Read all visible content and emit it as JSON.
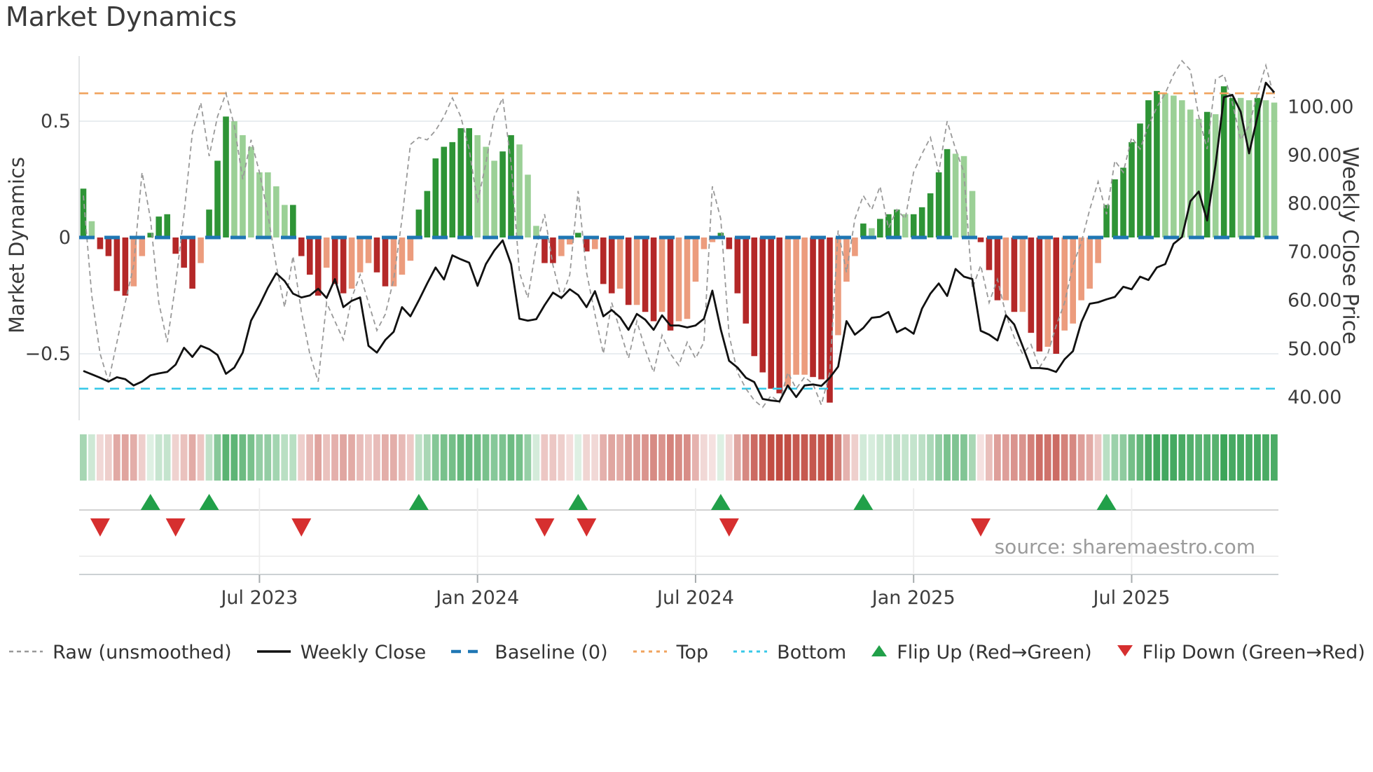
{
  "title": "Market Dynamics",
  "y_axis_left_label": "Market Dynamics",
  "y_axis_right_label": "Weekly Close Price",
  "source_note": "source: sharemaestro.com",
  "legend": [
    {
      "label": "Raw (unsmoothed)",
      "swatch": "raw"
    },
    {
      "label": "Weekly Close",
      "swatch": "close"
    },
    {
      "label": "Baseline (0)",
      "swatch": "baseline"
    },
    {
      "label": "Top",
      "swatch": "top"
    },
    {
      "label": "Bottom",
      "swatch": "bottom"
    },
    {
      "label": "Flip Up (Red→Green)",
      "swatch": "flip_up"
    },
    {
      "label": "Flip Down (Green→Red)",
      "swatch": "flip_down"
    }
  ],
  "colors": {
    "bar_dark_green": "#2e9436",
    "bar_light_green": "#9bd096",
    "bar_dark_red": "#b42828",
    "bar_light_red": "#ec9c7d",
    "baseline_blue": "#1f77b4",
    "top_orange": "#f0a35e",
    "bottom_cyan": "#38c9e8",
    "raw_gray": "#999999",
    "close_black": "#111111",
    "flip_up_green": "#21a049",
    "flip_down_red": "#d62f2f",
    "heat_green": "#3aa457",
    "heat_red": "#c14b41",
    "grid": "#e9edf0",
    "spine": "#d8dcde"
  },
  "chart_data": {
    "type": "bar+line",
    "title": "Market Dynamics",
    "ylabel_left": "Market Dynamics",
    "ylabel_right": "Weekly Close Price",
    "n_weeks": 143,
    "x_ticks": [
      {
        "label": "Jul 2023",
        "week": 22
      },
      {
        "label": "Jan 2024",
        "week": 48
      },
      {
        "label": "Jul 2024",
        "week": 74
      },
      {
        "label": "Jan 2025",
        "week": 100
      },
      {
        "label": "Jul 2025",
        "week": 126
      }
    ],
    "y_left_ticks": [
      {
        "label": "0.5",
        "value": 0.5
      },
      {
        "label": "0",
        "value": 0
      },
      {
        "label": "−0.5",
        "value": -0.5
      }
    ],
    "y_left_range": [
      -0.78,
      0.78
    ],
    "y_right_ticks": [
      {
        "label": "100.00",
        "value": 100
      },
      {
        "label": "90.00",
        "value": 90
      },
      {
        "label": "80.00",
        "value": 80
      },
      {
        "label": "70.00",
        "value": 70
      },
      {
        "label": "60.00",
        "value": 60
      },
      {
        "label": "50.00",
        "value": 50
      },
      {
        "label": "40.00",
        "value": 40
      }
    ],
    "baseline": 0,
    "top_line": 0.62,
    "bottom_line": -0.65,
    "price_at_zero_osc": 73.0,
    "price_per_osc_unit": 48.1,
    "oscillator_values": [
      0.21,
      0.07,
      -0.05,
      -0.08,
      -0.23,
      -0.25,
      -0.21,
      -0.08,
      0.02,
      0.09,
      0.1,
      -0.07,
      -0.13,
      -0.22,
      -0.11,
      0.12,
      0.33,
      0.52,
      0.5,
      0.44,
      0.39,
      0.28,
      0.28,
      0.22,
      0.14,
      0.14,
      -0.08,
      -0.16,
      -0.25,
      -0.13,
      -0.2,
      -0.24,
      -0.22,
      -0.15,
      -0.11,
      -0.15,
      -0.21,
      -0.21,
      -0.16,
      -0.1,
      0.12,
      0.2,
      0.34,
      0.39,
      0.41,
      0.47,
      0.47,
      0.44,
      0.39,
      0.33,
      0.37,
      0.44,
      0.4,
      0.27,
      0.05,
      -0.11,
      -0.11,
      -0.08,
      -0.03,
      0.02,
      -0.06,
      -0.05,
      -0.2,
      -0.24,
      -0.22,
      -0.29,
      -0.29,
      -0.32,
      -0.36,
      -0.32,
      -0.4,
      -0.36,
      -0.35,
      -0.19,
      -0.05,
      -0.02,
      0.02,
      -0.05,
      -0.24,
      -0.37,
      -0.51,
      -0.58,
      -0.65,
      -0.67,
      -0.64,
      -0.59,
      -0.59,
      -0.6,
      -0.61,
      -0.71,
      -0.42,
      -0.19,
      -0.08,
      0.06,
      0.04,
      0.08,
      0.1,
      0.12,
      0.1,
      0.1,
      0.13,
      0.19,
      0.28,
      0.38,
      0.36,
      0.35,
      0.2,
      -0.02,
      -0.14,
      -0.27,
      -0.27,
      -0.32,
      -0.32,
      -0.41,
      -0.49,
      -0.47,
      -0.5,
      -0.4,
      -0.37,
      -0.27,
      -0.22,
      -0.11,
      0.14,
      0.25,
      0.3,
      0.41,
      0.49,
      0.59,
      0.63,
      0.62,
      0.61,
      0.59,
      0.55,
      0.51,
      0.54,
      0.53,
      0.65,
      0.6,
      0.6,
      0.59,
      0.6,
      0.59,
      0.58
    ],
    "oscillator_shades": "dlddddllddddddldddlllllllddddlddlllddllldddddddlllddlllddllddlddldlddldlllllddddddddllldddllldldddldddddllldddldlddldllllldddddddllllldlddlldll",
    "raw_values": [
      0.18,
      -0.25,
      -0.5,
      -0.62,
      -0.45,
      -0.28,
      -0.12,
      0.28,
      0.08,
      -0.28,
      -0.45,
      -0.2,
      0.1,
      0.45,
      0.58,
      0.35,
      0.52,
      0.62,
      0.48,
      0.25,
      0.42,
      0.28,
      0.1,
      -0.12,
      -0.3,
      -0.08,
      -0.32,
      -0.5,
      -0.62,
      -0.28,
      -0.36,
      -0.44,
      -0.26,
      -0.16,
      -0.28,
      -0.4,
      -0.33,
      -0.18,
      0.08,
      0.4,
      0.43,
      0.42,
      0.46,
      0.52,
      0.6,
      0.52,
      0.38,
      0.15,
      0.32,
      0.52,
      0.6,
      0.32,
      -0.15,
      -0.26,
      -0.04,
      0.1,
      -0.12,
      -0.26,
      -0.16,
      0.2,
      -0.15,
      -0.33,
      -0.5,
      -0.28,
      -0.4,
      -0.52,
      -0.36,
      -0.48,
      -0.58,
      -0.42,
      -0.5,
      -0.55,
      -0.45,
      -0.52,
      -0.45,
      0.22,
      0.08,
      -0.42,
      -0.58,
      -0.65,
      -0.7,
      -0.73,
      -0.68,
      -0.71,
      -0.58,
      -0.65,
      -0.6,
      -0.63,
      -0.72,
      -0.58,
      0.03,
      -0.15,
      0.08,
      0.18,
      0.12,
      0.22,
      0.04,
      0.12,
      0.08,
      0.28,
      0.36,
      0.43,
      0.28,
      0.5,
      0.38,
      0.28,
      -0.22,
      -0.12,
      -0.28,
      -0.18,
      -0.33,
      -0.43,
      -0.5,
      -0.46,
      -0.56,
      -0.5,
      -0.38,
      -0.28,
      -0.12,
      -0.02,
      0.12,
      0.24,
      0.1,
      0.33,
      0.28,
      0.43,
      0.38,
      0.48,
      0.56,
      0.62,
      0.7,
      0.76,
      0.72,
      0.52,
      0.38,
      0.68,
      0.7,
      0.58,
      0.42,
      0.48,
      0.62,
      0.74,
      0.6
    ],
    "weekly_close": [
      45.4,
      44.7,
      44.0,
      43.2,
      44.1,
      43.7,
      42.4,
      43.2,
      44.5,
      44.9,
      45.2,
      46.7,
      50.2,
      48.3,
      50.6,
      49.9,
      48.7,
      44.8,
      46.1,
      49.2,
      55.8,
      59.0,
      62.6,
      65.6,
      64.0,
      61.4,
      60.6,
      61.0,
      62.4,
      60.5,
      64.4,
      58.6,
      59.9,
      60.6,
      50.6,
      49.2,
      51.8,
      53.5,
      58.6,
      56.7,
      60.0,
      63.5,
      66.8,
      64.3,
      69.3,
      68.5,
      67.8,
      63.0,
      67.5,
      70.3,
      72.4,
      67.5,
      56.2,
      55.8,
      56.1,
      59.0,
      61.6,
      60.5,
      62.3,
      61.1,
      58.6,
      61.9,
      56.7,
      58.0,
      56.5,
      53.9,
      57.2,
      56.0,
      53.9,
      56.9,
      54.8,
      54.8,
      54.4,
      54.8,
      56.2,
      62.0,
      54.0,
      47.5,
      46.1,
      44.0,
      43.1,
      39.6,
      39.3,
      39.1,
      42.4,
      40.0,
      42.4,
      42.6,
      42.3,
      44.0,
      46.3,
      55.7,
      52.9,
      54.3,
      56.4,
      56.6,
      57.6,
      53.4,
      54.3,
      53.1,
      58.3,
      61.4,
      63.5,
      60.9,
      66.5,
      64.9,
      64.4,
      53.7,
      52.9,
      51.7,
      56.9,
      55.0,
      50.5,
      46.0,
      46.0,
      45.8,
      45.2,
      47.8,
      49.5,
      55.5,
      59.3,
      59.6,
      60.2,
      60.7,
      62.8,
      62.3,
      64.9,
      64.2,
      66.8,
      67.5,
      71.7,
      73.1,
      80.5,
      82.5,
      76.5,
      88.0,
      102.0,
      102.5,
      99.0,
      90.4,
      98.0,
      105.0,
      103.0
    ],
    "flip_up_weeks": [
      9,
      16,
      41,
      60,
      77,
      94,
      123
    ],
    "flip_down_weeks": [
      3,
      12,
      27,
      56,
      61,
      78,
      108
    ],
    "legend_position": "bottom center",
    "grid": "horizontal at +0.5 and -0.5 only"
  }
}
